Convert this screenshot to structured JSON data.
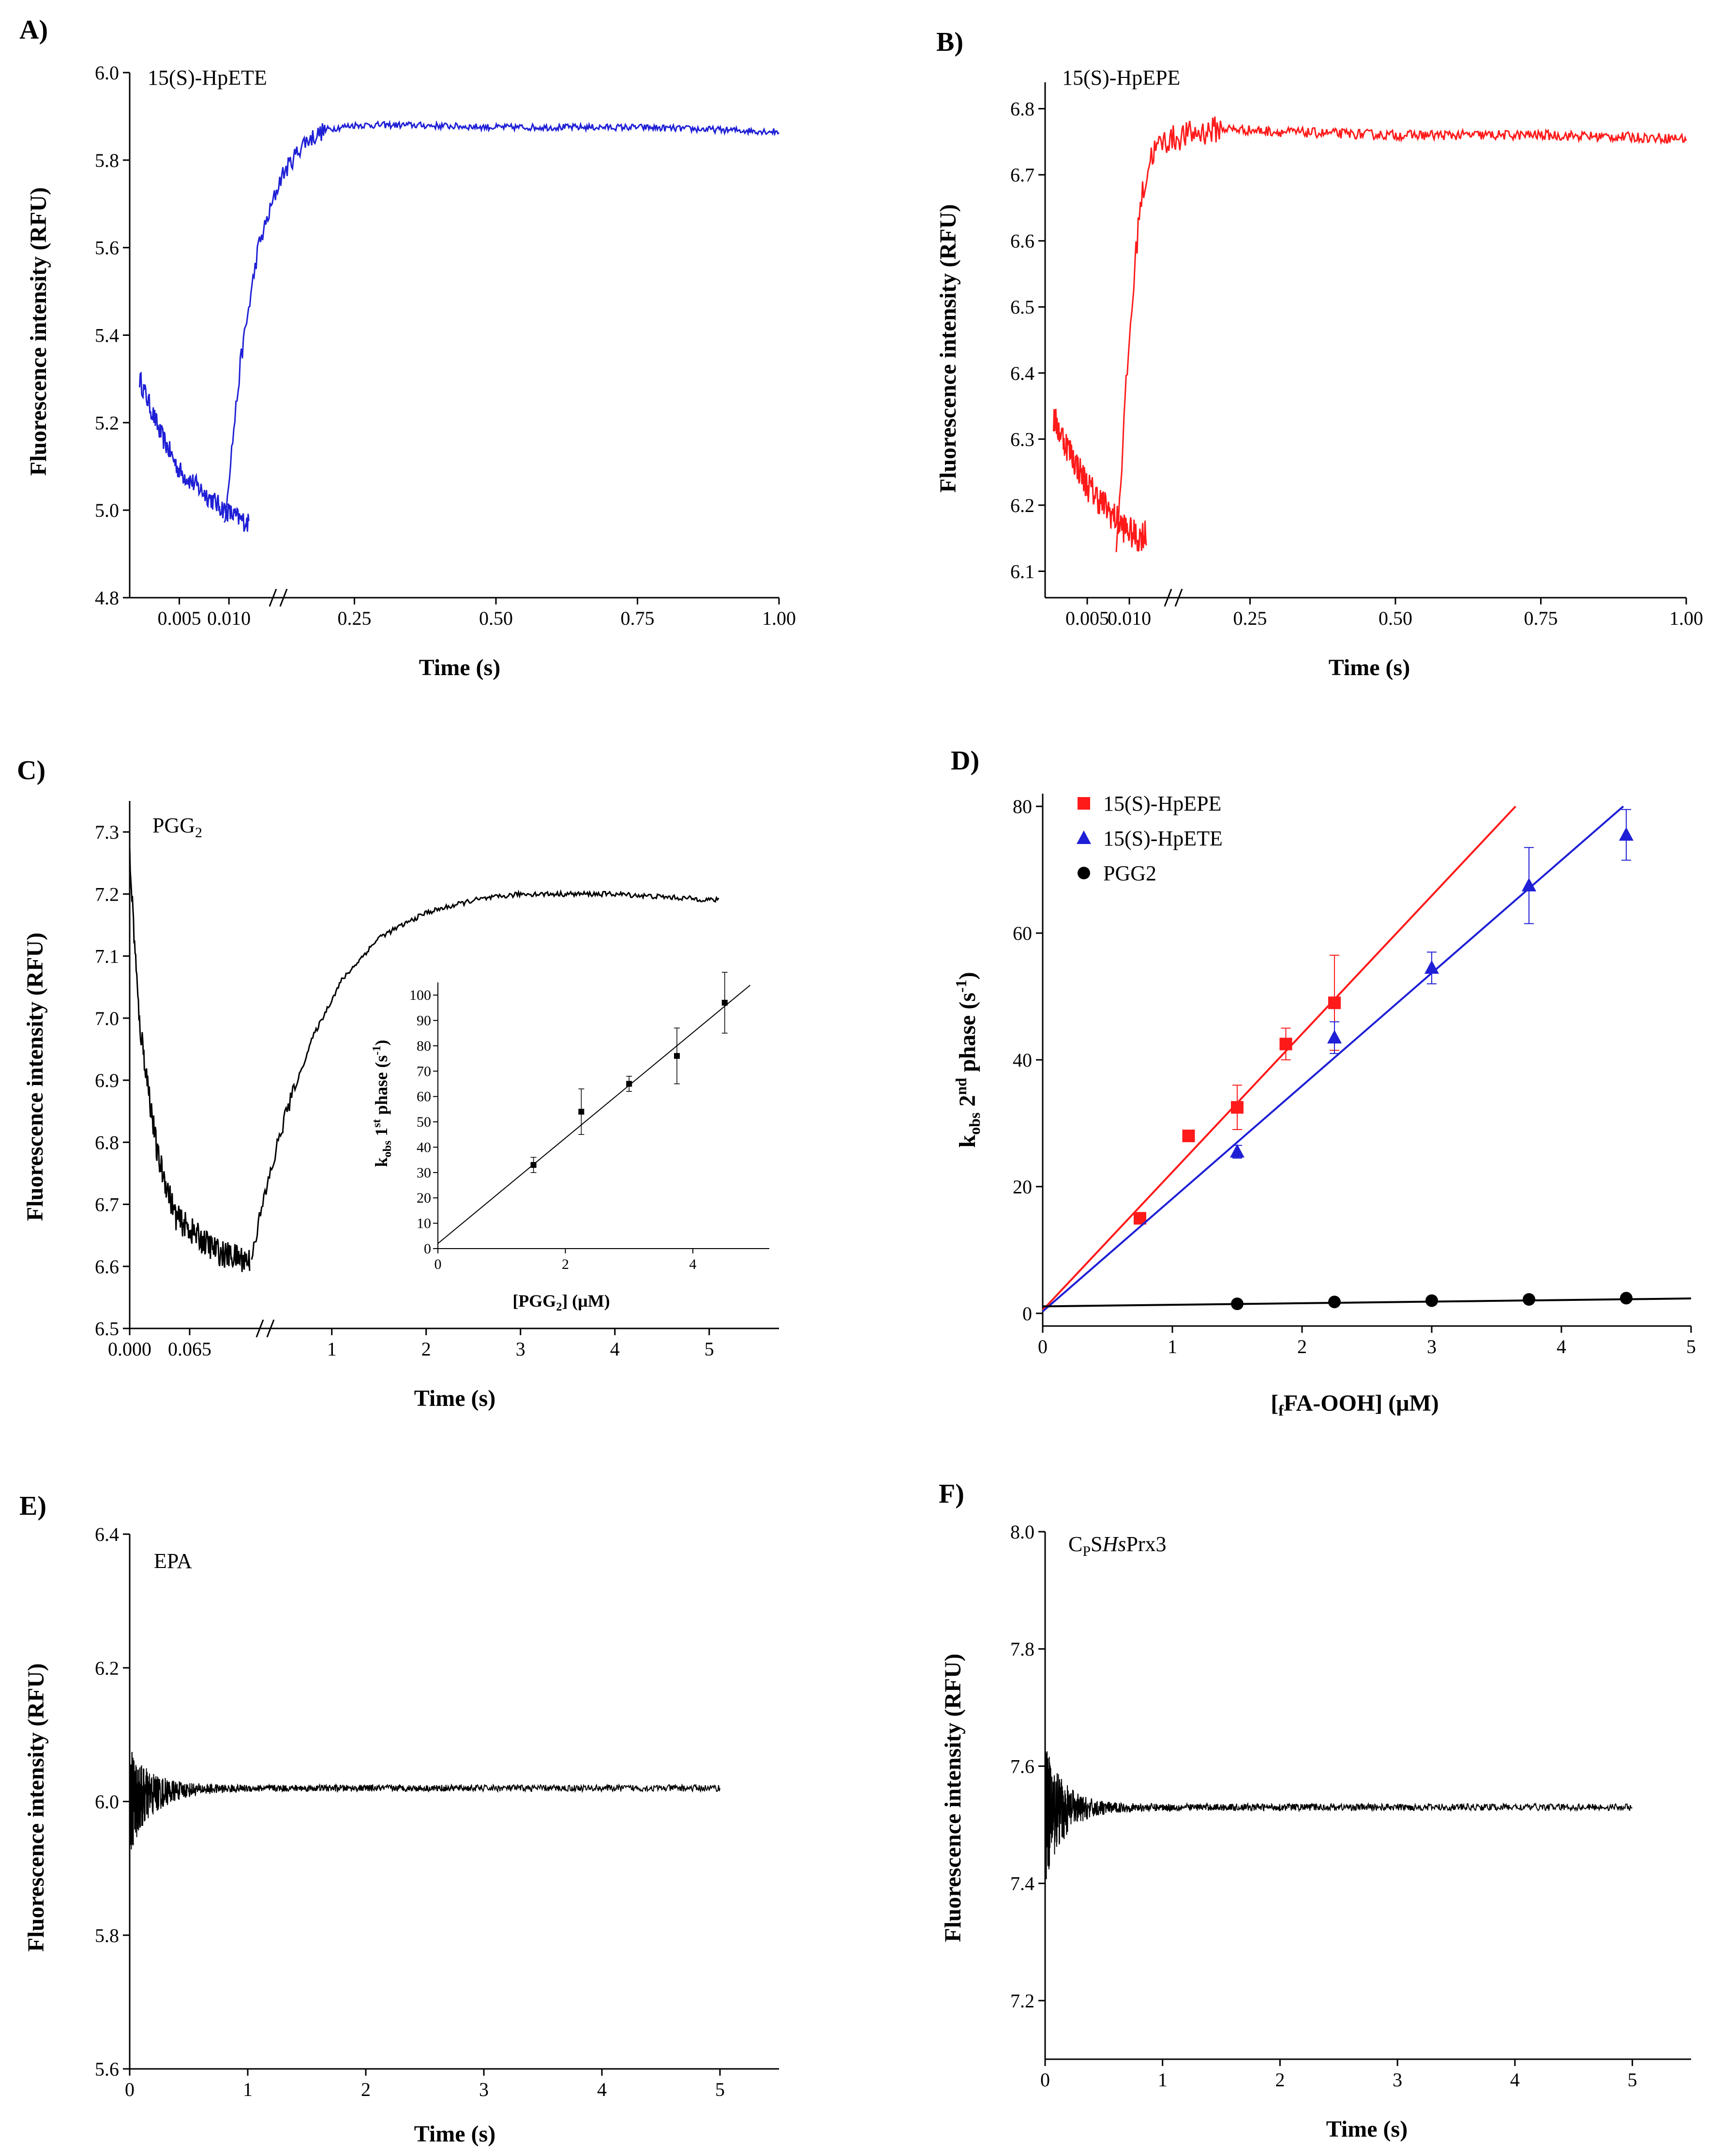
{
  "chart_data": [
    {
      "panel": "A)",
      "type": "line",
      "label": "15(S)-HpETE",
      "color": "#1f1fd6",
      "xlabel": "Time (s)",
      "ylabel": "Fluorescence intensity (RFU)",
      "x_ticks": [
        "0.005",
        "0.010",
        "0.25",
        "0.50",
        "0.75",
        "1.00"
      ],
      "y_ticks": [
        "4.8",
        "5.0",
        "5.2",
        "5.4",
        "5.6",
        "5.8",
        "6.0"
      ],
      "ylim": [
        4.8,
        6.0
      ],
      "x_break": true,
      "series": {
        "early_x": [
          0.001,
          0.003,
          0.005,
          0.007,
          0.009,
          0.011,
          0.012
        ],
        "early_y": [
          5.3,
          5.18,
          5.09,
          5.05,
          5.01,
          4.98,
          4.97
        ],
        "late_x": [
          0.02,
          0.05,
          0.08,
          0.12,
          0.16,
          0.2,
          0.25,
          0.35,
          0.5,
          0.75,
          1.0
        ],
        "late_y": [
          4.97,
          5.35,
          5.6,
          5.76,
          5.84,
          5.87,
          5.88,
          5.88,
          5.875,
          5.875,
          5.865
        ],
        "noise": 0.03
      }
    },
    {
      "panel": "B)",
      "type": "line",
      "label": "15(S)-HpEPE",
      "color": "#ff1a1a",
      "xlabel": "Time (s)",
      "ylabel": "Fluorescence intensity (RFU)",
      "x_ticks": [
        "0.005",
        "0.010",
        "0.25",
        "0.50",
        "0.75",
        "1.00"
      ],
      "y_ticks": [
        "6.1",
        "6.2",
        "6.3",
        "6.4",
        "6.5",
        "6.6",
        "6.7",
        "6.8"
      ],
      "ylim": [
        6.06,
        6.84
      ],
      "x_break": true,
      "series": {
        "early_x": [
          0.001,
          0.003,
          0.005,
          0.007,
          0.009,
          0.011,
          0.012
        ],
        "early_y": [
          6.33,
          6.28,
          6.23,
          6.2,
          6.17,
          6.15,
          6.16
        ],
        "late_x": [
          0.02,
          0.04,
          0.06,
          0.08,
          0.1,
          0.14,
          0.2,
          0.3,
          0.5,
          0.75,
          1.0
        ],
        "late_y": [
          6.13,
          6.42,
          6.65,
          6.73,
          6.75,
          6.76,
          6.77,
          6.765,
          6.76,
          6.76,
          6.755
        ],
        "noise": 0.03
      }
    },
    {
      "panel": "C)",
      "type": "line",
      "label": "PGG2",
      "color": "#000000",
      "xlabel": "Time (s)",
      "ylabel": "Fluorescence intensity (RFU)",
      "x_ticks": [
        "0.000",
        "0.065",
        "1",
        "2",
        "3",
        "4",
        "5"
      ],
      "y_ticks": [
        "6.5",
        "6.6",
        "6.7",
        "6.8",
        "6.9",
        "7.0",
        "7.1",
        "7.2",
        "7.3"
      ],
      "ylim": [
        6.5,
        7.35
      ],
      "x_break": true,
      "series": {
        "early_x": [
          0.0,
          0.01,
          0.03,
          0.05,
          0.08,
          0.1,
          0.13
        ],
        "early_y": [
          7.26,
          7.0,
          6.78,
          6.68,
          6.64,
          6.62,
          6.61
        ],
        "late_x": [
          0.15,
          0.3,
          0.5,
          0.8,
          1.1,
          1.5,
          2.0,
          2.5,
          3.0,
          4.0,
          5.1
        ],
        "late_y": [
          6.62,
          6.72,
          6.84,
          6.97,
          7.06,
          7.13,
          7.17,
          7.19,
          7.2,
          7.2,
          7.19
        ],
        "noise": 0.02
      },
      "inset": {
        "xlabel": "[PGG2] (μM)",
        "ylabel": "kobs 1st phase (s-1)",
        "x_ticks": [
          "0",
          "2",
          "4"
        ],
        "y_ticks": [
          "0",
          "10",
          "20",
          "30",
          "40",
          "50",
          "60",
          "70",
          "80",
          "90",
          "100"
        ],
        "xlim": [
          0,
          5.2
        ],
        "ylim": [
          0,
          105
        ],
        "points_x": [
          1.5,
          2.25,
          3.0,
          3.75,
          4.5
        ],
        "points_y": [
          33,
          54,
          65,
          76,
          97
        ],
        "errors": [
          3,
          9,
          3,
          11,
          12
        ],
        "fit": {
          "slope": 20.8,
          "intercept": 2
        }
      }
    },
    {
      "panel": "D)",
      "type": "scatter",
      "xlabel": "[fFA-OOH] (μM)",
      "ylabel": "kobs 2nd phase (s-1)",
      "x_ticks": [
        "0",
        "1",
        "2",
        "3",
        "4",
        "5"
      ],
      "y_ticks": [
        "0",
        "20",
        "40",
        "60",
        "80"
      ],
      "xlim": [
        0,
        5
      ],
      "ylim": [
        -2,
        82
      ],
      "legend": [
        "15(S)-HpEPE",
        "15(S)-HpETE",
        "PGG2"
      ],
      "legend_position": "top-left",
      "series": [
        {
          "name": "15(S)-HpEPE",
          "marker": "square",
          "color": "#ff1a1a",
          "x": [
            0.75,
            1.125,
            1.5,
            1.875,
            2.25
          ],
          "y": [
            15,
            28,
            32.5,
            42.5,
            49
          ],
          "err": [
            0.5,
            0.8,
            3.5,
            2.5,
            7.5
          ],
          "fit": {
            "slope": 21.8,
            "intercept": 0.5
          }
        },
        {
          "name": "15(S)-HpETE",
          "marker": "triangle",
          "color": "#1f1fd6",
          "x": [
            1.5,
            2.25,
            3.0,
            3.75,
            4.5
          ],
          "y": [
            25.5,
            43.5,
            54.5,
            67.5,
            75.5
          ],
          "err": [
            1,
            2.5,
            2.5,
            6,
            4
          ],
          "fit": {
            "slope": 17.8,
            "intercept": 0.3
          }
        },
        {
          "name": "PGG2",
          "marker": "circle",
          "color": "#000000",
          "x": [
            1.5,
            2.25,
            3.0,
            3.75,
            4.5
          ],
          "y": [
            1.5,
            1.8,
            2.0,
            2.2,
            2.4
          ],
          "err": [
            0,
            0,
            0,
            0,
            0
          ],
          "fit": {
            "slope": 0.25,
            "intercept": 1.1
          }
        }
      ]
    },
    {
      "panel": "E)",
      "type": "line",
      "label": "EPA",
      "color": "#000000",
      "xlabel": "Time (s)",
      "ylabel": "Fluorescence intensity (RFU)",
      "x_ticks": [
        "0",
        "1",
        "2",
        "3",
        "4",
        "5"
      ],
      "y_ticks": [
        "5.6",
        "5.8",
        "6.0",
        "6.2",
        "6.4"
      ],
      "xlim": [
        0,
        5.5
      ],
      "ylim": [
        5.6,
        6.4
      ],
      "series": {
        "baseline": 6.02,
        "start": 6.0,
        "noise_initial": 0.08,
        "noise_final": 0.005,
        "decay": 0.6,
        "end": 5.0
      }
    },
    {
      "panel": "F)",
      "type": "line",
      "label": "CpSHsPrx3",
      "color": "#000000",
      "xlabel": "Time (s)",
      "ylabel": "Fluorescence intensity (RFU)",
      "x_ticks": [
        "0",
        "1",
        "2",
        "3",
        "4",
        "5"
      ],
      "y_ticks": [
        "7.2",
        "7.4",
        "7.6",
        "7.8",
        "8.0"
      ],
      "xlim": [
        0,
        5.5
      ],
      "ylim": [
        7.1,
        8.0
      ],
      "series": {
        "baseline": 7.53,
        "start": 7.52,
        "noise_initial": 0.12,
        "noise_final": 0.006,
        "decay": 0.5,
        "end": 5.0
      }
    }
  ]
}
